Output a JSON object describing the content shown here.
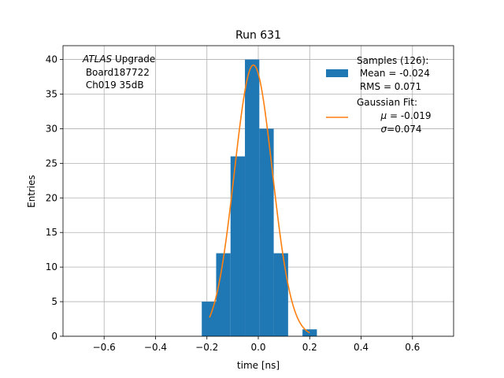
{
  "chart_data": {
    "type": "bar",
    "title": "Run 631",
    "xlabel": "time [ns]",
    "ylabel": "Entries",
    "xlim": [
      -0.76,
      0.76
    ],
    "ylim": [
      0,
      42
    ],
    "grid": true,
    "x_ticks": [
      {
        "value": -0.6,
        "label": "−0.6"
      },
      {
        "value": -0.4,
        "label": "−0.4"
      },
      {
        "value": -0.2,
        "label": "−0.2"
      },
      {
        "value": 0.0,
        "label": "0.0"
      },
      {
        "value": 0.2,
        "label": "0.2"
      },
      {
        "value": 0.4,
        "label": "0.4"
      },
      {
        "value": 0.6,
        "label": "0.6"
      }
    ],
    "y_ticks": [
      {
        "value": 0,
        "label": "0"
      },
      {
        "value": 5,
        "label": "5"
      },
      {
        "value": 10,
        "label": "10"
      },
      {
        "value": 15,
        "label": "15"
      },
      {
        "value": 20,
        "label": "20"
      },
      {
        "value": 25,
        "label": "25"
      },
      {
        "value": 30,
        "label": "30"
      },
      {
        "value": 35,
        "label": "35"
      },
      {
        "value": 40,
        "label": "40"
      }
    ],
    "histogram": {
      "color": "#1f77b4",
      "bins": [
        {
          "x0": -0.22,
          "x1": -0.164,
          "count": 5
        },
        {
          "x0": -0.164,
          "x1": -0.108,
          "count": 12
        },
        {
          "x0": -0.108,
          "x1": -0.052,
          "count": 26
        },
        {
          "x0": -0.052,
          "x1": 0.004,
          "count": 40
        },
        {
          "x0": 0.004,
          "x1": 0.06,
          "count": 30
        },
        {
          "x0": 0.06,
          "x1": 0.116,
          "count": 12
        },
        {
          "x0": 0.172,
          "x1": 0.228,
          "count": 1
        }
      ]
    },
    "fit": {
      "color": "#ff7f0e",
      "mu": -0.019,
      "sigma": 0.074,
      "amplitude": 39.2,
      "x_range": [
        -0.19,
        0.2
      ]
    },
    "annotation": {
      "italic": "ATLAS",
      "line1_rest": " Upgrade",
      "line2": " Board187722",
      "line3": " Ch019 35dB"
    },
    "legend": {
      "placement": "top-right",
      "samples_line1": "Samples (126):",
      "samples_line2": " Mean = -0.024",
      "samples_line3": " RMS = 0.071",
      "fit_line1": "Gaussian Fit:",
      "fit_line2_sym": "μ",
      "fit_line2_rest": " = -0.019",
      "fit_line3_sym": "σ",
      "fit_line3_rest": "=0.074"
    }
  }
}
